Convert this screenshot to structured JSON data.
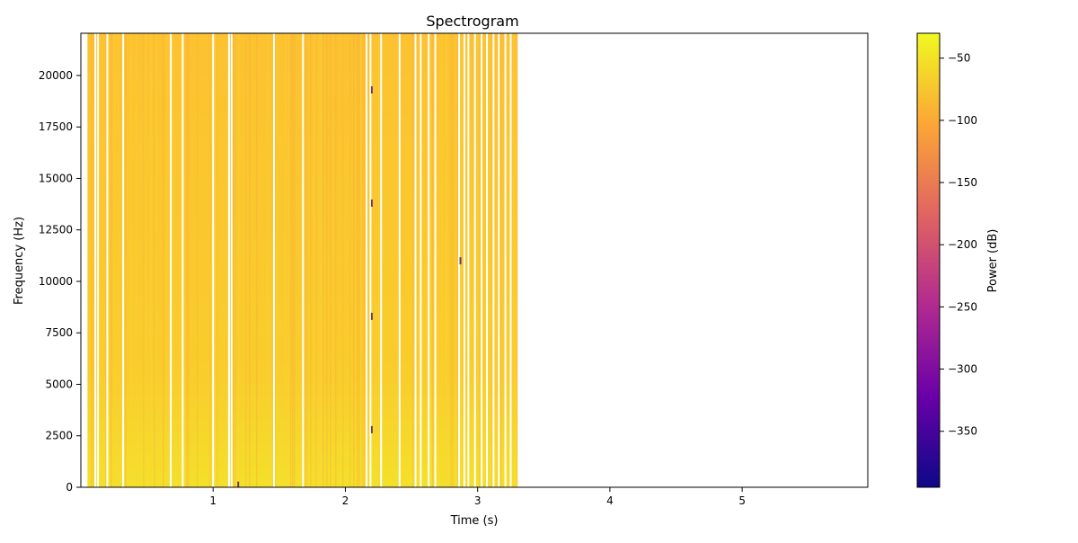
{
  "chart_data": {
    "type": "heatmap",
    "title": "Spectrogram",
    "xlabel": "Time (s)",
    "ylabel": "Frequency (Hz)",
    "colorbar_label": "Power (dB)",
    "colormap": "plasma",
    "colormap_stops": [
      "#0d0887",
      "#6a00a8",
      "#b12a90",
      "#e16462",
      "#fca636",
      "#f0f921"
    ],
    "xlim": [
      0.0,
      5.95
    ],
    "ylim": [
      0,
      22050
    ],
    "clim": [
      -395,
      -30
    ],
    "x_ticks": [
      1,
      2,
      3,
      4,
      5
    ],
    "y_ticks": [
      0,
      2500,
      5000,
      7500,
      10000,
      12500,
      15000,
      17500,
      20000
    ],
    "colorbar_ticks": [
      -50,
      -100,
      -150,
      -200,
      -250,
      -300,
      -350
    ],
    "signal_time_range": [
      0.05,
      3.3
    ],
    "typical_power_db": [
      -90,
      -50
    ],
    "gap_times": [
      0.11,
      0.13,
      0.2,
      0.32,
      0.68,
      0.77,
      1.0,
      1.12,
      1.14,
      1.46,
      1.68,
      2.16,
      2.19,
      2.27,
      2.41,
      2.53,
      2.57,
      2.63,
      2.68,
      2.86,
      2.9,
      2.93,
      2.98,
      3.03,
      3.07,
      3.12,
      3.16,
      3.21,
      3.25
    ],
    "dark_spots": [
      {
        "t": 2.2,
        "f": 19300
      },
      {
        "t": 2.2,
        "f": 13800
      },
      {
        "t": 2.2,
        "f": 8300
      },
      {
        "t": 2.2,
        "f": 2800
      },
      {
        "t": 2.87,
        "f": 11000
      },
      {
        "t": 1.19,
        "f": 100
      }
    ],
    "grid": false
  }
}
